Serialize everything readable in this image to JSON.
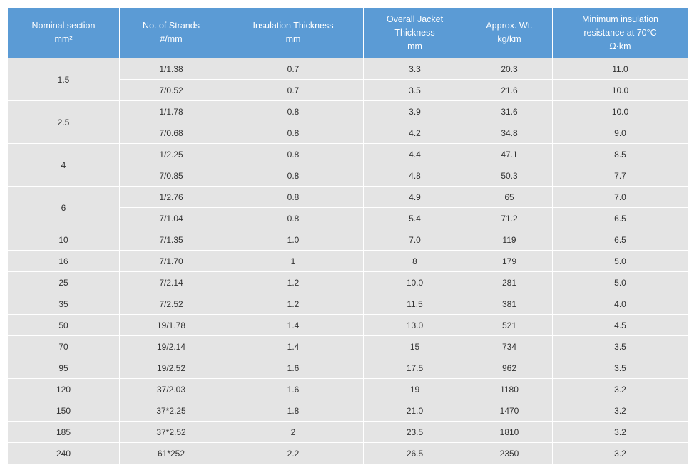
{
  "headers": [
    [
      "Nominal section",
      "mm²"
    ],
    [
      "No. of Strands",
      "#/mm"
    ],
    [
      "Insulation Thickness",
      "mm"
    ],
    [
      "Overall Jacket",
      "Thickness",
      "mm"
    ],
    [
      "Approx. Wt.",
      "kg/km"
    ],
    [
      "Minimum insulation",
      "resistance at 70°C",
      "Ω·km"
    ]
  ],
  "groups": [
    {
      "section": "1.5",
      "rows": [
        [
          "1/1.38",
          "0.7",
          "3.3",
          "20.3",
          "11.0"
        ],
        [
          "7/0.52",
          "0.7",
          "3.5",
          "21.6",
          "10.0"
        ]
      ]
    },
    {
      "section": "2.5",
      "rows": [
        [
          "1/1.78",
          "0.8",
          "3.9",
          "31.6",
          "10.0"
        ],
        [
          "7/0.68",
          "0.8",
          "4.2",
          "34.8",
          "9.0"
        ]
      ]
    },
    {
      "section": "4",
      "rows": [
        [
          "1/2.25",
          "0.8",
          "4.4",
          "47.1",
          "8.5"
        ],
        [
          "7/0.85",
          "0.8",
          "4.8",
          "50.3",
          "7.7"
        ]
      ]
    },
    {
      "section": "6",
      "rows": [
        [
          "1/2.76",
          "0.8",
          "4.9",
          "65",
          "7.0"
        ],
        [
          "7/1.04",
          "0.8",
          "5.4",
          "71.2",
          "6.5"
        ]
      ]
    },
    {
      "section": "10",
      "rows": [
        [
          "7/1.35",
          "1.0",
          "7.0",
          "119",
          "6.5"
        ]
      ]
    },
    {
      "section": "16",
      "rows": [
        [
          "7/1.70",
          "1",
          "8",
          "179",
          "5.0"
        ]
      ]
    },
    {
      "section": "25",
      "rows": [
        [
          "7/2.14",
          "1.2",
          "10.0",
          "281",
          "5.0"
        ]
      ]
    },
    {
      "section": "35",
      "rows": [
        [
          "7/2.52",
          "1.2",
          "11.5",
          "381",
          "4.0"
        ]
      ]
    },
    {
      "section": "50",
      "rows": [
        [
          "19/1.78",
          "1.4",
          "13.0",
          "521",
          "4.5"
        ]
      ]
    },
    {
      "section": "70",
      "rows": [
        [
          "19/2.14",
          "1.4",
          "15",
          "734",
          "3.5"
        ]
      ]
    },
    {
      "section": "95",
      "rows": [
        [
          "19/2.52",
          "1.6",
          "17.5",
          "962",
          "3.5"
        ]
      ]
    },
    {
      "section": "120",
      "rows": [
        [
          "37/2.03",
          "1.6",
          "19",
          "1180",
          "3.2"
        ]
      ]
    },
    {
      "section": "150",
      "rows": [
        [
          "37*2.25",
          "1.8",
          "21.0",
          "1470",
          "3.2"
        ]
      ]
    },
    {
      "section": "185",
      "rows": [
        [
          "37*2.52",
          "2",
          "23.5",
          "1810",
          "3.2"
        ]
      ]
    },
    {
      "section": "240",
      "rows": [
        [
          "61*252",
          "2.2",
          "26.5",
          "2350",
          "3.2"
        ]
      ]
    }
  ],
  "colors": {
    "header_bg": "#5b9bd5",
    "header_text": "#ffffff",
    "cell_bg": "#e4e4e4",
    "cell_text": "#333333",
    "grid": "#ffffff"
  }
}
